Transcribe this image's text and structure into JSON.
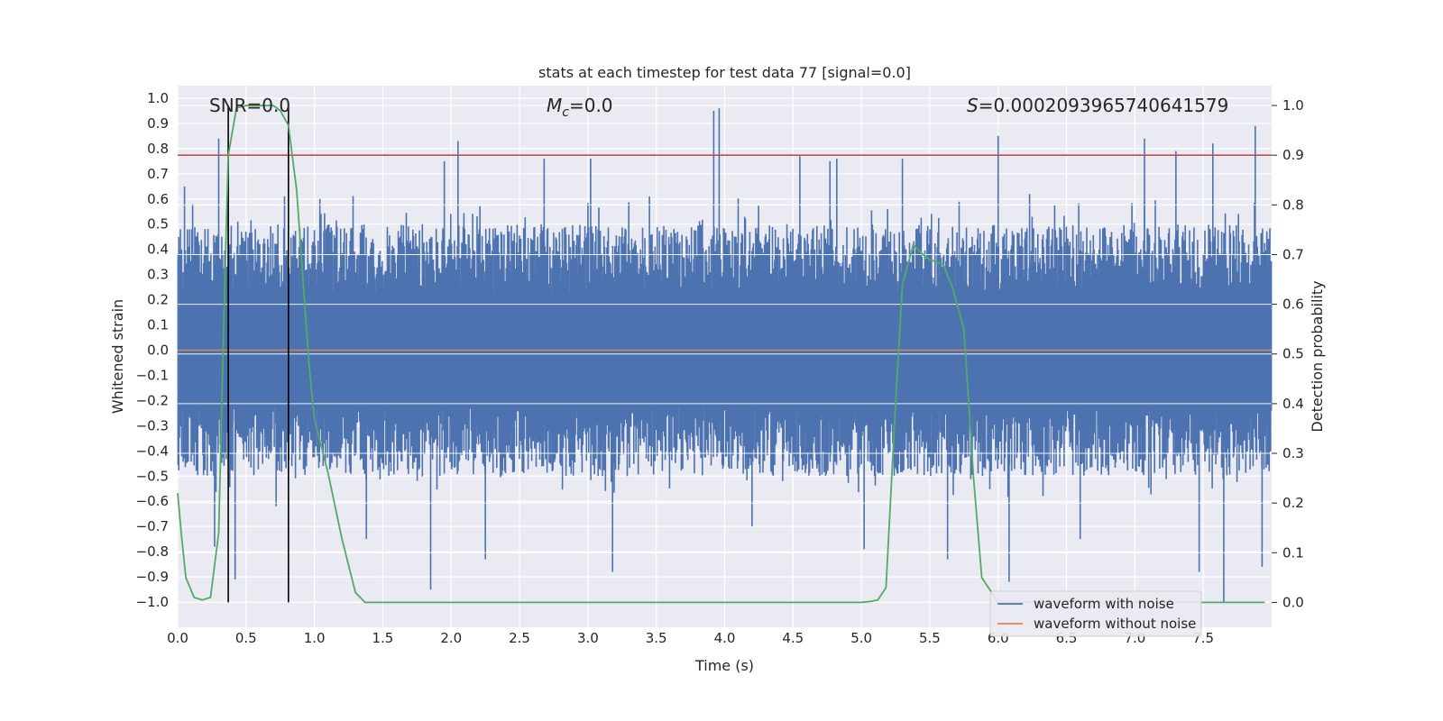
{
  "chart_data": {
    "type": "line",
    "title": "stats at each timestep for test data 77 [signal=0.0]",
    "xlabel": "Time (s)",
    "ylabel": "Whitened strain",
    "y2label": "Detection probability",
    "xlim": [
      0.0,
      8.0
    ],
    "ylim": [
      -1.1,
      1.05
    ],
    "y2lim": [
      -0.05,
      1.04
    ],
    "xticks": [
      0.0,
      0.5,
      1.0,
      1.5,
      2.0,
      2.5,
      3.0,
      3.5,
      4.0,
      4.5,
      5.0,
      5.5,
      6.0,
      6.5,
      7.0,
      7.5
    ],
    "xtick_labels": [
      "0.0",
      "0.5",
      "1.0",
      "1.5",
      "2.0",
      "2.5",
      "3.0",
      "3.5",
      "4.0",
      "4.5",
      "5.0",
      "5.5",
      "6.0",
      "6.5",
      "7.0",
      "7.5"
    ],
    "yticks": [
      1.0,
      0.9,
      0.8,
      0.7,
      0.6,
      0.5,
      0.4,
      0.3,
      0.2,
      0.1,
      0.0,
      -0.1,
      -0.2,
      -0.3,
      -0.4,
      -0.5,
      -0.6,
      -0.7,
      -0.8,
      -0.9,
      -1.0
    ],
    "ytick_labels": [
      "1.0",
      "0.9",
      "0.8",
      "0.7",
      "0.6",
      "0.5",
      "0.4",
      "0.3",
      "0.2",
      "0.1",
      "0.0",
      "−0.1",
      "−0.2",
      "−0.3",
      "−0.4",
      "−0.5",
      "−0.6",
      "−0.7",
      "−0.8",
      "−0.9",
      "−1.0"
    ],
    "y2ticks": [
      1.0,
      0.9,
      0.8,
      0.7,
      0.6,
      0.5,
      0.4,
      0.3,
      0.2,
      0.1,
      0.0
    ],
    "y2tick_labels": [
      "1.0",
      "0.9",
      "0.8",
      "0.7",
      "0.6",
      "0.5",
      "0.4",
      "0.3",
      "0.2",
      "0.1",
      "0.0"
    ],
    "grid": true,
    "annotations": {
      "snr": "SNR=0.0",
      "mc_symbol": "M",
      "mc_sub": "c",
      "mc_value": "=0.0",
      "s_symbol": "S",
      "s_value": "=0.0002093965740641579"
    },
    "threshold_probability": 0.9,
    "vertical_markers_x": [
      0.37,
      0.81
    ],
    "series": [
      {
        "name": "waveform with noise",
        "color": "#4c72b0",
        "axis": "left",
        "band_min": -0.5,
        "band_max": 0.5,
        "spike_peaks": [
          {
            "x": 0.02,
            "y": 0.48
          },
          {
            "x": 0.05,
            "y": 0.65
          },
          {
            "x": 0.3,
            "y": 0.84
          },
          {
            "x": 0.37,
            "y": 0.8
          },
          {
            "x": 0.42,
            "y": -0.91
          },
          {
            "x": 0.27,
            "y": -0.78
          },
          {
            "x": 0.72,
            "y": -0.62
          },
          {
            "x": 1.04,
            "y": 0.6
          },
          {
            "x": 1.38,
            "y": -0.75
          },
          {
            "x": 1.85,
            "y": -0.95
          },
          {
            "x": 1.95,
            "y": 0.75
          },
          {
            "x": 2.05,
            "y": 0.83
          },
          {
            "x": 2.25,
            "y": -0.83
          },
          {
            "x": 2.68,
            "y": 0.76
          },
          {
            "x": 3.02,
            "y": 0.76
          },
          {
            "x": 3.18,
            "y": -0.88
          },
          {
            "x": 3.45,
            "y": 0.61
          },
          {
            "x": 3.92,
            "y": 0.95
          },
          {
            "x": 3.96,
            "y": 0.96
          },
          {
            "x": 4.2,
            "y": -0.7
          },
          {
            "x": 4.55,
            "y": 0.77
          },
          {
            "x": 4.77,
            "y": 0.75
          },
          {
            "x": 4.82,
            "y": 0.76
          },
          {
            "x": 5.02,
            "y": -0.79
          },
          {
            "x": 5.3,
            "y": 0.76
          },
          {
            "x": 5.63,
            "y": -0.83
          },
          {
            "x": 6.0,
            "y": 0.85
          },
          {
            "x": 6.08,
            "y": -0.92
          },
          {
            "x": 6.23,
            "y": 0.62
          },
          {
            "x": 6.6,
            "y": -0.75
          },
          {
            "x": 7.07,
            "y": 0.84
          },
          {
            "x": 7.3,
            "y": 0.79
          },
          {
            "x": 7.47,
            "y": -0.88
          },
          {
            "x": 7.57,
            "y": 0.82
          },
          {
            "x": 7.65,
            "y": -1.0
          },
          {
            "x": 7.88,
            "y": 0.89
          },
          {
            "x": 7.93,
            "y": -0.86
          }
        ]
      },
      {
        "name": "waveform without noise",
        "color": "#dd8452",
        "axis": "left",
        "x": [
          0.0,
          8.0
        ],
        "y": [
          0.0,
          0.0
        ]
      },
      {
        "name": "detection probability",
        "color": "#55a868",
        "axis": "right",
        "x": [
          0.0,
          0.03,
          0.06,
          0.12,
          0.18,
          0.24,
          0.3,
          0.34,
          0.37,
          0.43,
          0.5,
          0.6,
          0.7,
          0.75,
          0.81,
          0.87,
          0.96,
          1.0,
          1.1,
          1.2,
          1.3,
          1.37,
          1.45,
          2.0,
          3.0,
          4.0,
          5.0,
          5.07,
          5.12,
          5.18,
          5.25,
          5.3,
          5.38,
          5.45,
          5.5,
          5.6,
          5.67,
          5.75,
          5.82,
          5.88,
          6.0,
          7.0,
          7.95
        ],
        "y": [
          0.22,
          0.13,
          0.05,
          0.01,
          0.005,
          0.01,
          0.14,
          0.6,
          0.9,
          0.995,
          1.0,
          1.0,
          1.0,
          0.99,
          0.96,
          0.83,
          0.48,
          0.37,
          0.26,
          0.13,
          0.02,
          0.0,
          0.0,
          0.0,
          0.0,
          0.0,
          0.0,
          0.002,
          0.005,
          0.03,
          0.4,
          0.64,
          0.72,
          0.7,
          0.69,
          0.68,
          0.63,
          0.55,
          0.25,
          0.05,
          0.0,
          0.0,
          0.0
        ]
      }
    ],
    "legend": {
      "placement": "lower-right",
      "entries": [
        {
          "label": "waveform with noise",
          "color": "#4c72b0"
        },
        {
          "label": "waveform without noise",
          "color": "#dd8452"
        }
      ]
    },
    "colors": {
      "axes_bg": "#eaeaf2",
      "grid": "#ffffff",
      "threshold": "#c44e52",
      "marker": "#000000",
      "noise": "#4c72b0",
      "clean": "#dd8452",
      "probability": "#55a868"
    }
  }
}
